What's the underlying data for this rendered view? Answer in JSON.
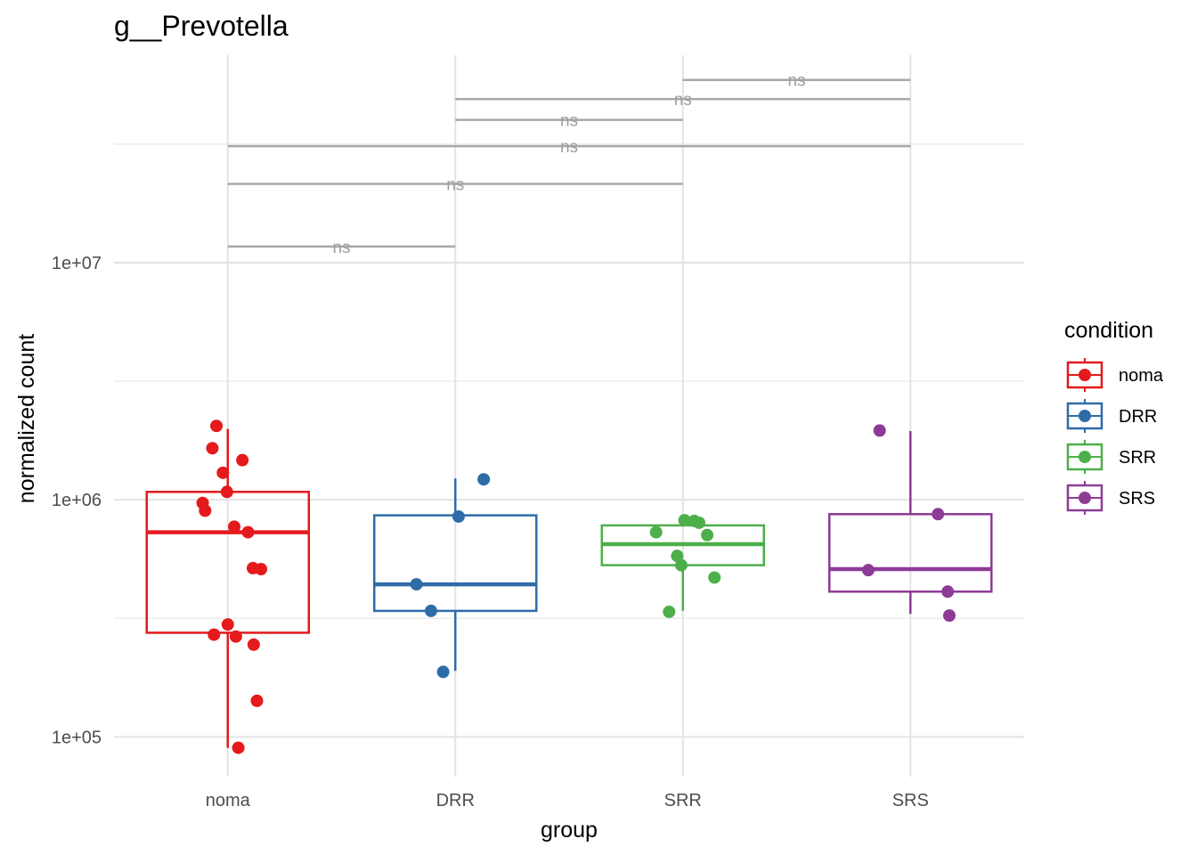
{
  "chart_data": {
    "type": "box",
    "title": "g__Prevotella",
    "xlabel": "group",
    "ylabel": "normalized count",
    "yscale": "log10",
    "ylim": [
      68000,
      75000000
    ],
    "yticks": [
      {
        "value": 100000,
        "label": "1e+05"
      },
      {
        "value": 1000000,
        "label": "1e+06"
      },
      {
        "value": 10000000,
        "label": "1e+07"
      }
    ],
    "categories": [
      "noma",
      "DRR",
      "SRR",
      "SRS"
    ],
    "grid": true,
    "legend": {
      "title": "condition",
      "position": "right",
      "items": [
        {
          "label": "noma",
          "color": "#E41A1C"
        },
        {
          "label": "DRR",
          "color": "#2E6CA8"
        },
        {
          "label": "SRR",
          "color": "#4DAF4A"
        },
        {
          "label": "SRS",
          "color": "#8E3B97"
        }
      ]
    },
    "series": [
      {
        "category": "noma",
        "color": "#E41A1C",
        "box": {
          "whisker_low": 90000,
          "q1": 275000,
          "median": 730000,
          "q3": 1080000,
          "whisker_high": 1990000
        },
        "points": [
          {
            "j": -0.14,
            "y": 2050000
          },
          {
            "j": -0.19,
            "y": 1650000
          },
          {
            "j": 0.18,
            "y": 1470000
          },
          {
            "j": -0.06,
            "y": 1300000
          },
          {
            "j": -0.01,
            "y": 1080000
          },
          {
            "j": -0.31,
            "y": 970000
          },
          {
            "j": -0.28,
            "y": 900000
          },
          {
            "j": 0.08,
            "y": 770000
          },
          {
            "j": 0.25,
            "y": 730000
          },
          {
            "j": 0.31,
            "y": 515000
          },
          {
            "j": 0.41,
            "y": 510000
          },
          {
            "j": 0.0,
            "y": 298000
          },
          {
            "j": -0.17,
            "y": 270000
          },
          {
            "j": 0.1,
            "y": 265000
          },
          {
            "j": 0.32,
            "y": 245000
          },
          {
            "j": 0.36,
            "y": 142000
          },
          {
            "j": 0.13,
            "y": 90000
          }
        ]
      },
      {
        "category": "DRR",
        "color": "#2E6CA8",
        "box": {
          "whisker_low": 190000,
          "q1": 340000,
          "median": 440000,
          "q3": 860000,
          "whisker_high": 1230000
        },
        "points": [
          {
            "j": 0.35,
            "y": 1220000
          },
          {
            "j": 0.04,
            "y": 850000
          },
          {
            "j": -0.48,
            "y": 440000
          },
          {
            "j": -0.3,
            "y": 340000
          },
          {
            "j": -0.15,
            "y": 188000
          }
        ]
      },
      {
        "category": "SRR",
        "color": "#4DAF4A",
        "box": {
          "whisker_low": 340000,
          "q1": 530000,
          "median": 650000,
          "q3": 780000,
          "whisker_high": 820000
        },
        "points": [
          {
            "j": 0.02,
            "y": 820000
          },
          {
            "j": 0.14,
            "y": 815000
          },
          {
            "j": 0.2,
            "y": 800000
          },
          {
            "j": -0.33,
            "y": 730000
          },
          {
            "j": 0.3,
            "y": 710000
          },
          {
            "j": -0.07,
            "y": 580000
          },
          {
            "j": -0.02,
            "y": 530000
          },
          {
            "j": 0.39,
            "y": 470000
          },
          {
            "j": -0.17,
            "y": 337000
          }
        ]
      },
      {
        "category": "SRS",
        "color": "#8E3B97",
        "box": {
          "whisker_low": 330000,
          "q1": 410000,
          "median": 510000,
          "q3": 870000,
          "whisker_high": 1950000
        },
        "points": [
          {
            "j": -0.38,
            "y": 1960000
          },
          {
            "j": 0.34,
            "y": 870000
          },
          {
            "j": -0.52,
            "y": 505000
          },
          {
            "j": 0.46,
            "y": 410000
          },
          {
            "j": 0.48,
            "y": 325000
          }
        ]
      }
    ],
    "comparisons": [
      {
        "from": "noma",
        "to": "DRR",
        "y": 11700000,
        "label": "ns"
      },
      {
        "from": "noma",
        "to": "SRR",
        "y": 21500000,
        "label": "ns"
      },
      {
        "from": "noma",
        "to": "SRS",
        "y": 31000000,
        "label": "ns"
      },
      {
        "from": "DRR",
        "to": "SRR",
        "y": 40000000,
        "label": "ns"
      },
      {
        "from": "DRR",
        "to": "SRS",
        "y": 49000000,
        "label": "ns"
      },
      {
        "from": "SRR",
        "to": "SRS",
        "y": 59000000,
        "label": "ns"
      }
    ]
  }
}
